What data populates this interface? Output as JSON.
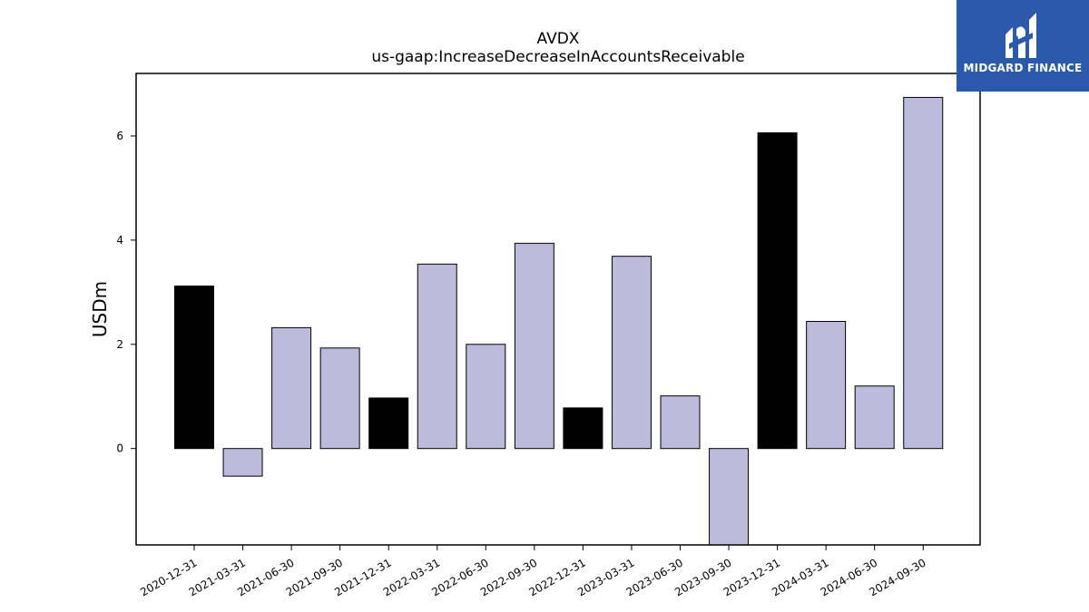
{
  "brand": {
    "name": "MIDGARD FINANCE",
    "color": "#2b5aad"
  },
  "colors": {
    "normal_bar": "#bebadb",
    "highlight_bar": "#000000",
    "edge": "#000000"
  },
  "chart_data": {
    "type": "bar",
    "title": "AVDX",
    "subtitle": "us-gaap:IncreaseDecreaseInAccountsReceivable",
    "xlabel": "",
    "ylabel": "USDm",
    "ylim": [
      -1.85,
      7.2
    ],
    "yticks": [
      0,
      2,
      4,
      6
    ],
    "grid": false,
    "categories": [
      "2020-12-31",
      "2021-03-31",
      "2021-06-30",
      "2021-09-30",
      "2021-12-31",
      "2022-03-31",
      "2022-06-30",
      "2022-09-30",
      "2022-12-31",
      "2023-03-31",
      "2023-06-30",
      "2023-09-30",
      "2023-12-31",
      "2024-03-31",
      "2024-06-30",
      "2024-09-30"
    ],
    "values": [
      3.12,
      -0.53,
      2.32,
      1.93,
      0.97,
      3.54,
      2.0,
      3.94,
      0.78,
      3.69,
      1.01,
      -1.85,
      6.06,
      2.44,
      1.2,
      6.74
    ],
    "highlight": [
      true,
      false,
      false,
      false,
      true,
      false,
      false,
      false,
      true,
      false,
      false,
      false,
      true,
      false,
      false,
      false
    ]
  }
}
